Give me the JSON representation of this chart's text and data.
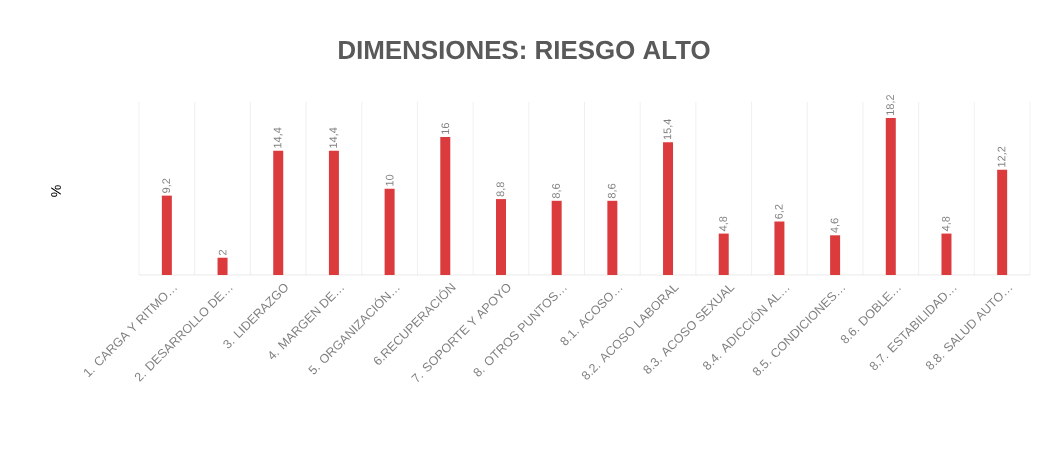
{
  "chart_data": {
    "type": "bar",
    "title": "DIMENSIONES:  RIESGO ALTO",
    "ylabel": "%",
    "categories": [
      "1. CARGA Y RITMO…",
      "2. DESARROLLO DE…",
      "3. LIDERAZGO",
      "4. MARGEN DE…",
      "5. ORGANIZACIÓN…",
      "6.RECUPERACIÓN",
      "7. SOPORTE Y APOYO",
      "8. OTROS PUNTOS…",
      "8.1. ACOSO…",
      "8.2. ACOSO LABORAL",
      "8.3. ACOSO SEXUAL",
      "8.4. ADICCIÓN AL…",
      "8.5. CONDICIONES…",
      "8.6. DOBLE…",
      "8.7. ESTABILIDAD…",
      "8.8. SALUD AUTO…"
    ],
    "values": [
      9.2,
      2,
      14.4,
      14.4,
      10,
      16,
      8.8,
      8.6,
      8.6,
      15.4,
      4.8,
      6.2,
      4.6,
      18.2,
      4.8,
      12.2
    ],
    "value_labels": [
      "9,2",
      "2",
      "14,4",
      "14,4",
      "10",
      "16",
      "8,8",
      "8,6",
      "8,6",
      "15,4",
      "4,8",
      "6,2",
      "4,6",
      "18,2",
      "4,8",
      "12,2"
    ],
    "color": "#dc3b3e",
    "grid": "x"
  }
}
